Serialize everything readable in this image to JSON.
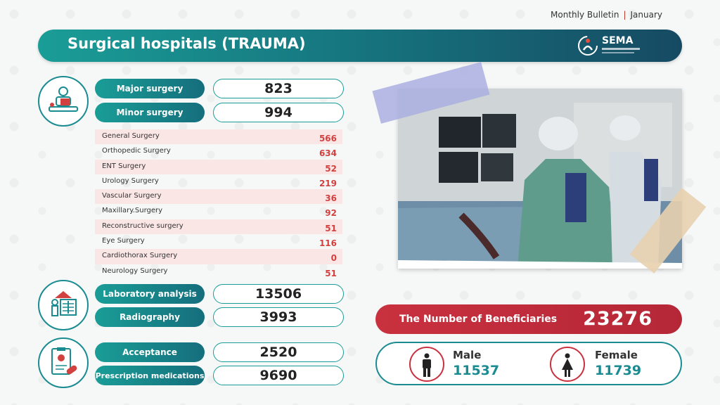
{
  "bulletin": {
    "label": "Monthly Bulletin",
    "separator": "|",
    "month": "January"
  },
  "header": {
    "title": "Surgical hospitals (TRAUMA)",
    "logo_text": "SEMA"
  },
  "stats": {
    "major_surgery": {
      "label": "Major surgery",
      "value": "823"
    },
    "minor_surgery": {
      "label": "Minor surgery",
      "value": "994"
    },
    "laboratory_analysis": {
      "label": "Laboratory analysis",
      "value": "13506"
    },
    "radiography": {
      "label": "Radiography",
      "value": "3993"
    },
    "acceptance": {
      "label": "Acceptance",
      "value": "2520"
    },
    "prescription_medications": {
      "label": "Prescription medications",
      "value": "9690"
    }
  },
  "surgery_breakdown": [
    {
      "label": "General Surgery",
      "value": "566"
    },
    {
      "label": "Orthopedic Surgery",
      "value": "634"
    },
    {
      "label": "ENT Surgery",
      "value": "52"
    },
    {
      "label": "Urology Surgery",
      "value": "219"
    },
    {
      "label": " Vascular Surgery",
      "value": "36"
    },
    {
      "label": "Maxillary.Surgery",
      "value": "92"
    },
    {
      "label": "Reconstructive surgery",
      "value": "51"
    },
    {
      "label": " Eye Surgery",
      "value": "116"
    },
    {
      "label": "Cardiothorax Surgery",
      "value": "0"
    },
    {
      "label": "Neurology Surgery",
      "value": "51"
    }
  ],
  "beneficiaries": {
    "label": "The Number of Beneficiaries",
    "value": "23276"
  },
  "gender": {
    "male": {
      "label": "Male",
      "value": "11537"
    },
    "female": {
      "label": "Female",
      "value": "11739"
    }
  },
  "colors": {
    "teal": "#1a9d97",
    "navy": "#164a63",
    "red": "#c9313f"
  }
}
